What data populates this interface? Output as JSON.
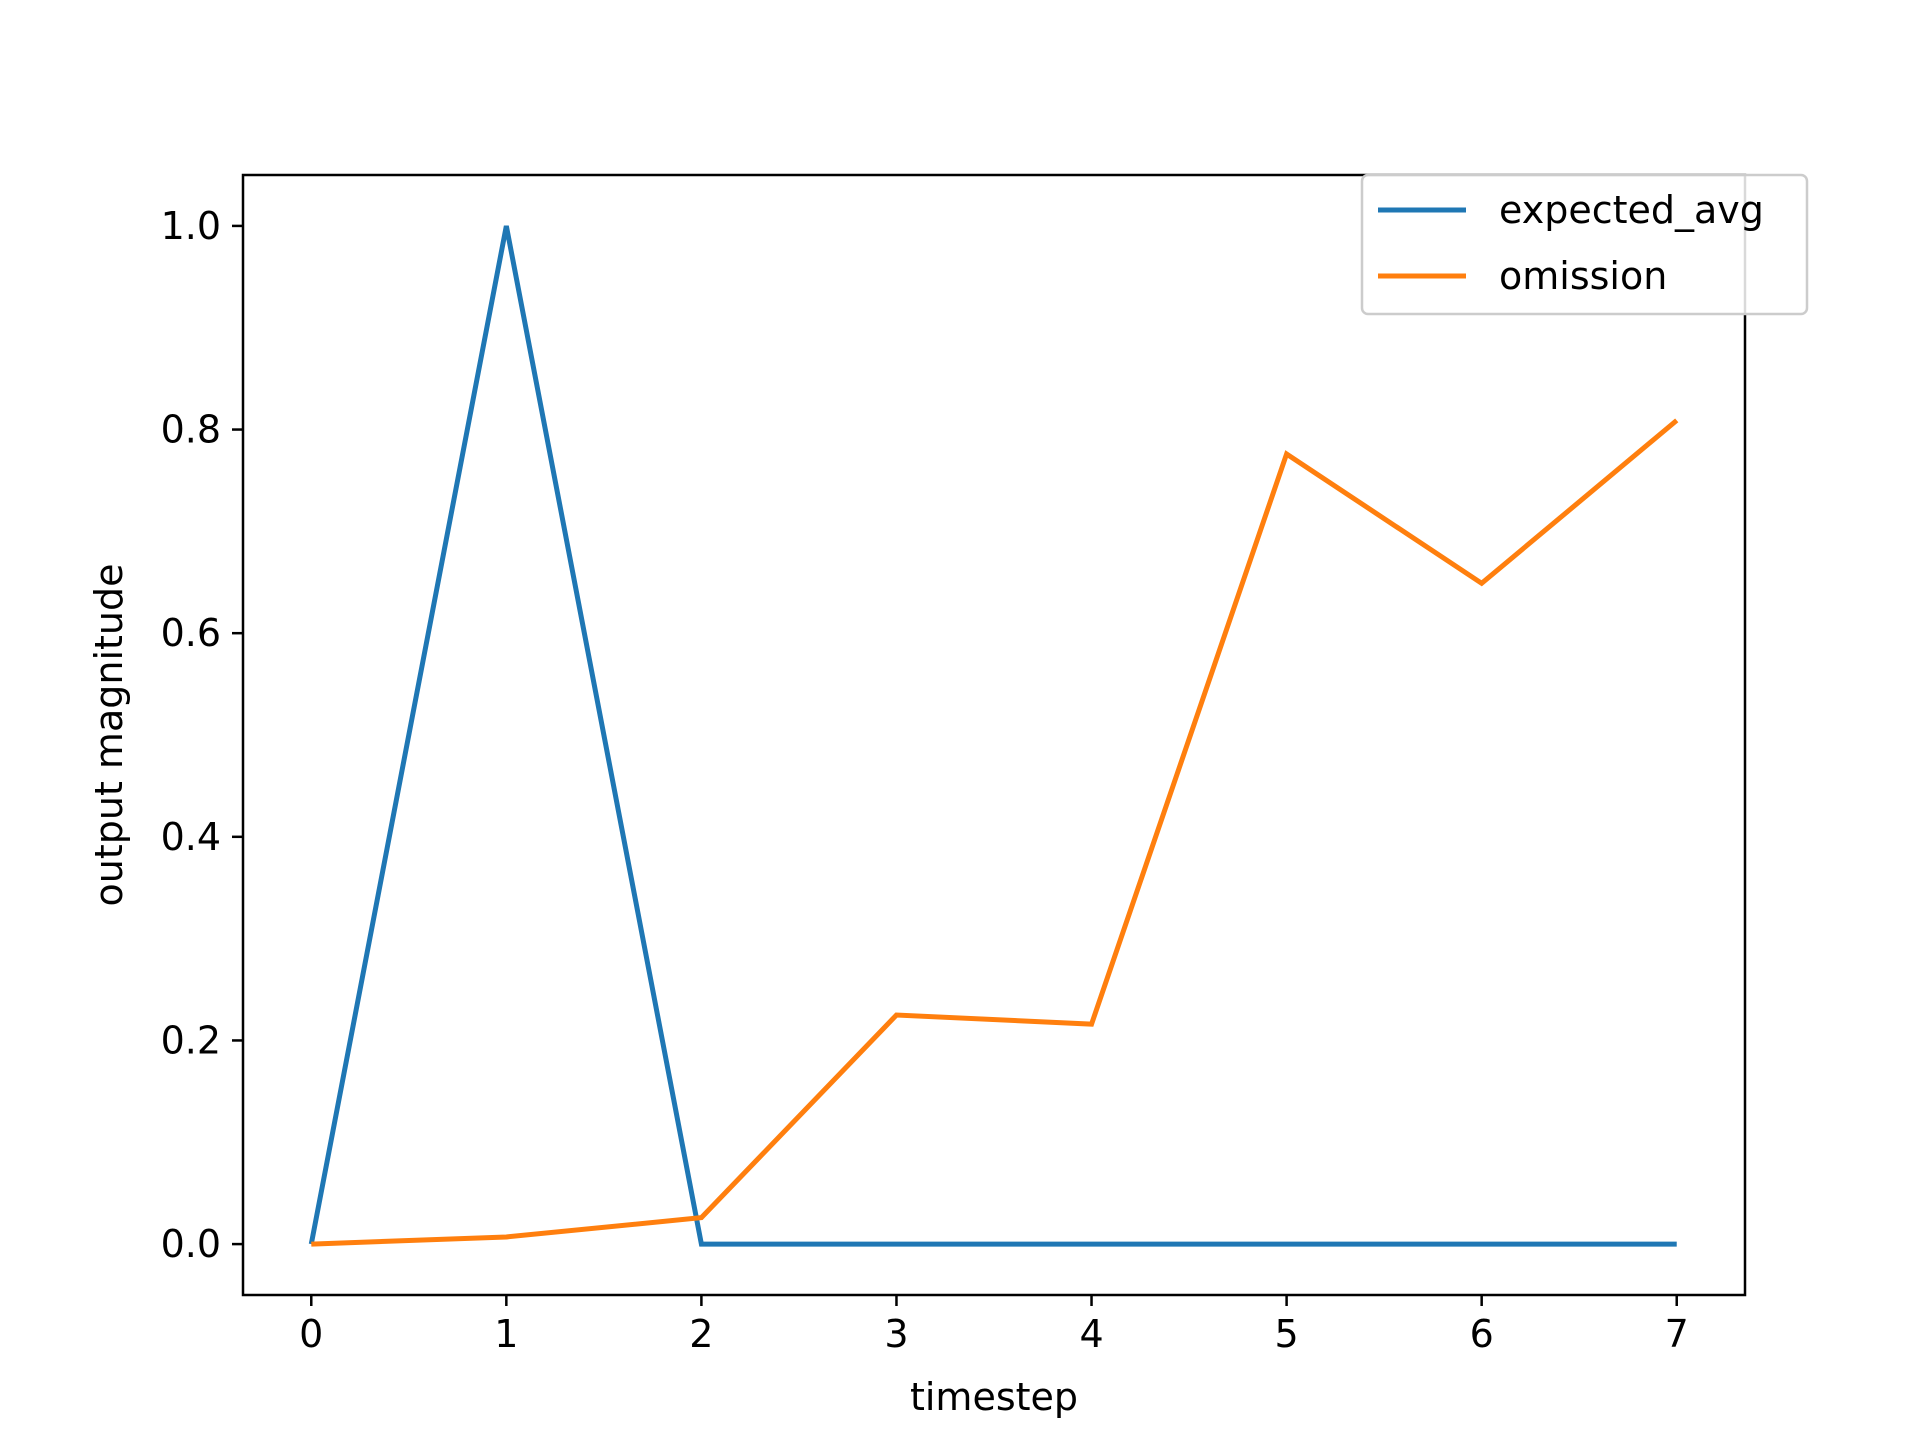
{
  "chart_data": {
    "type": "line",
    "title": "",
    "xlabel": "timestep",
    "ylabel": "output magnitude",
    "x": [
      0,
      1,
      2,
      3,
      4,
      5,
      6,
      7
    ],
    "series": [
      {
        "name": "expected_avg",
        "color": "#1f77b4",
        "values": [
          0.0,
          1.0,
          0.0,
          0.0,
          0.0,
          0.0,
          0.0,
          0.0
        ]
      },
      {
        "name": "omission",
        "color": "#ff7f0e",
        "values": [
          0.0,
          0.007,
          0.026,
          0.225,
          0.216,
          0.776,
          0.649,
          0.809
        ]
      }
    ],
    "xlim": [
      -0.35,
      7.35
    ],
    "ylim": [
      -0.05,
      1.05
    ],
    "x_ticks": [
      0,
      1,
      2,
      3,
      4,
      5,
      6,
      7
    ],
    "x_tick_labels": [
      "0",
      "1",
      "2",
      "3",
      "4",
      "5",
      "6",
      "7"
    ],
    "y_ticks": [
      0.0,
      0.2,
      0.4,
      0.6,
      0.8,
      1.0
    ],
    "y_tick_labels": [
      "0.0",
      "0.2",
      "0.4",
      "0.6",
      "0.8",
      "1.0"
    ],
    "grid": false,
    "legend_position": "top-right"
  }
}
